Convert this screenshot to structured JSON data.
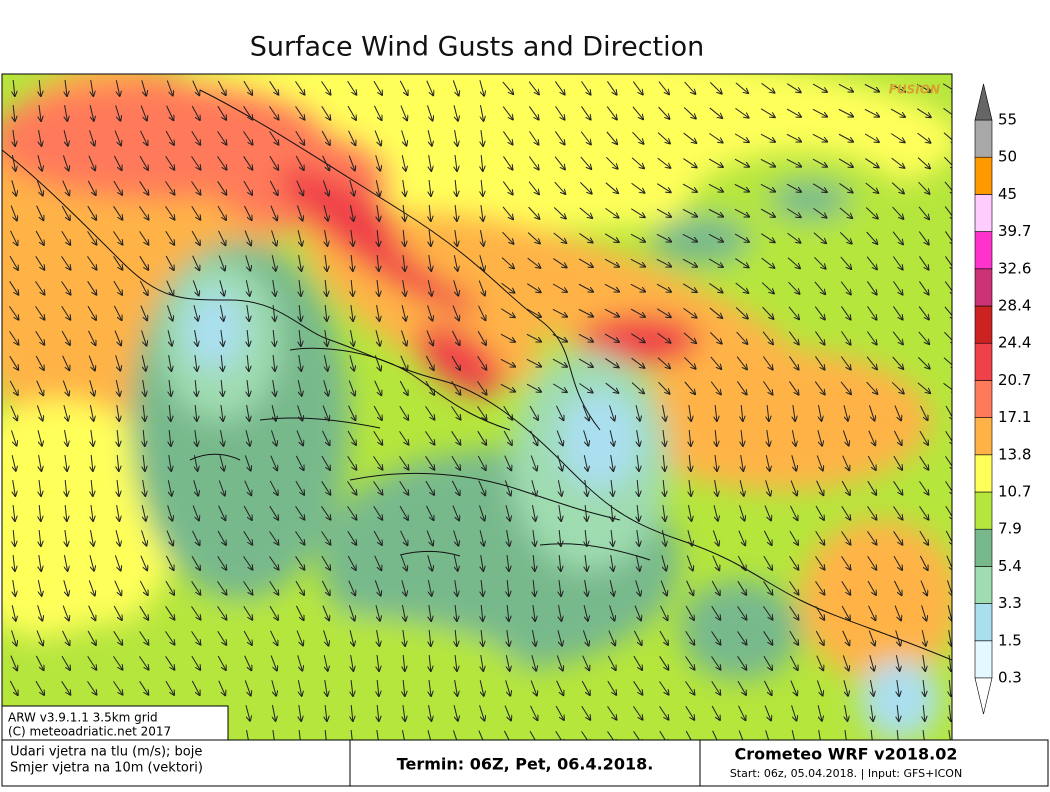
{
  "title": "Surface Wind Gusts and Direction",
  "watermark": "FUSION",
  "info": [
    "ARW v3.9.1.1 3.5km grid",
    "(C) meteoadriatic.net 2017"
  ],
  "footer": {
    "legend_lines": [
      "Udari vjetra na tlu (m/s); boje",
      "Smjer vjetra na 10m (vektori)"
    ],
    "termin": "Termin: 06Z, Pet, 06.4.2018.",
    "model": "Crometeo WRF v2018.02",
    "run": "Start: 06z, 05.04.2018. | Input: GFS+ICON"
  },
  "colorbar": {
    "levels": [
      0.3,
      1.5,
      3.3,
      5.4,
      7.9,
      10.7,
      13.8,
      17.1,
      20.7,
      24.4,
      28.4,
      32.6,
      39.7,
      45,
      50,
      55
    ],
    "colors": [
      "#e4f8ff",
      "#aadff0",
      "#9fdcb0",
      "#78b98c",
      "#b5e63c",
      "#ffff5a",
      "#ffb347",
      "#ff7a5a",
      "#f0404a",
      "#cc2222",
      "#cc3377",
      "#ff33cc",
      "#ffccff",
      "#ff9900",
      "#a8a8a8"
    ],
    "under_color": "#ffffff",
    "over_color": "#666666"
  }
}
